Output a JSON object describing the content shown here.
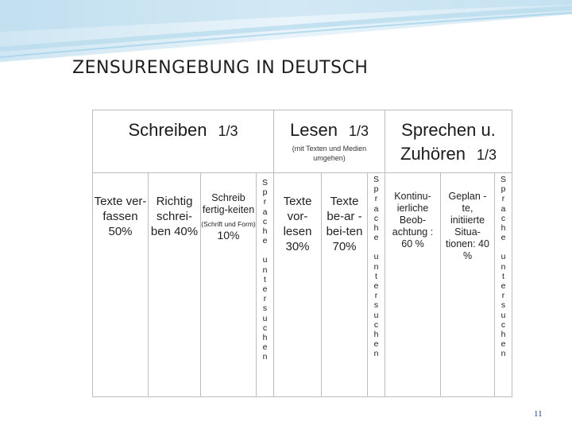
{
  "slide": {
    "title": "ZENSURENGEBUNG  IN DEUTSCH",
    "page_number": "11",
    "accent_color": "#7fb9db"
  },
  "headers": {
    "schreiben": {
      "label": "Schreiben",
      "fraction": "1/3"
    },
    "lesen": {
      "label": "Lesen",
      "fraction": "1/3",
      "note": "(mit Texten und Medien umgehen)"
    },
    "sprechen": {
      "label_line1": "Sprechen u.",
      "label_line2": "Zuhören",
      "fraction": "1/3"
    }
  },
  "schreiben": {
    "col1": "Texte ver-fassen 50%",
    "col2": "Richtig schrei-ben 40%",
    "col3_main": "Schreib fertig-keiten",
    "col3_note": "(Schrift und Form)",
    "col3_percent": "10%"
  },
  "lesen": {
    "col1": "Texte vor-lesen 30%",
    "col2": "Texte be-ar -bei-ten 70%"
  },
  "sprechen": {
    "col1": "Kontinu-ierliche Beob-achtung : 60 %",
    "col2": "Geplan -te, initiierte Situa-tionen: 40 %"
  },
  "vertical_labels": {
    "v1": "Sprache untersuchen",
    "v2": "Sprache untersuchen",
    "v3": "Sprache untersuchen"
  }
}
